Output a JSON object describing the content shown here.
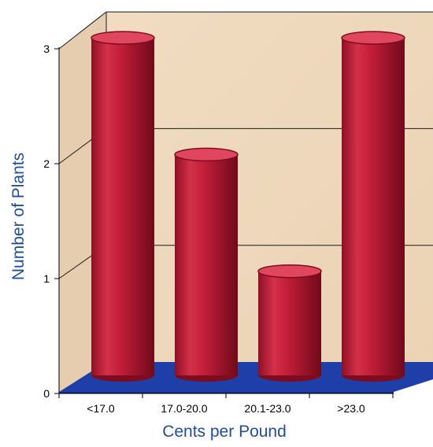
{
  "chart_data": {
    "type": "bar",
    "style": "3d-cylinder",
    "categories": [
      "<17.0",
      "17.0-20.0",
      "20.1-23.0",
      ">23.0"
    ],
    "values": [
      3,
      2,
      1,
      3
    ],
    "xlabel": "Cents per Pound",
    "ylabel": "Number of Plants",
    "ylim": [
      0,
      3
    ],
    "yticks": [
      "0",
      "1",
      "2",
      "3"
    ],
    "grid": true,
    "legend": "none",
    "colors": {
      "bar": "#c41e3a",
      "bar_dark": "#7e0c1f",
      "bar_light": "#e0475e",
      "wall": "#efd9bd",
      "floor": "#1f3fa8",
      "axis_label": "#1f4e9c"
    }
  }
}
